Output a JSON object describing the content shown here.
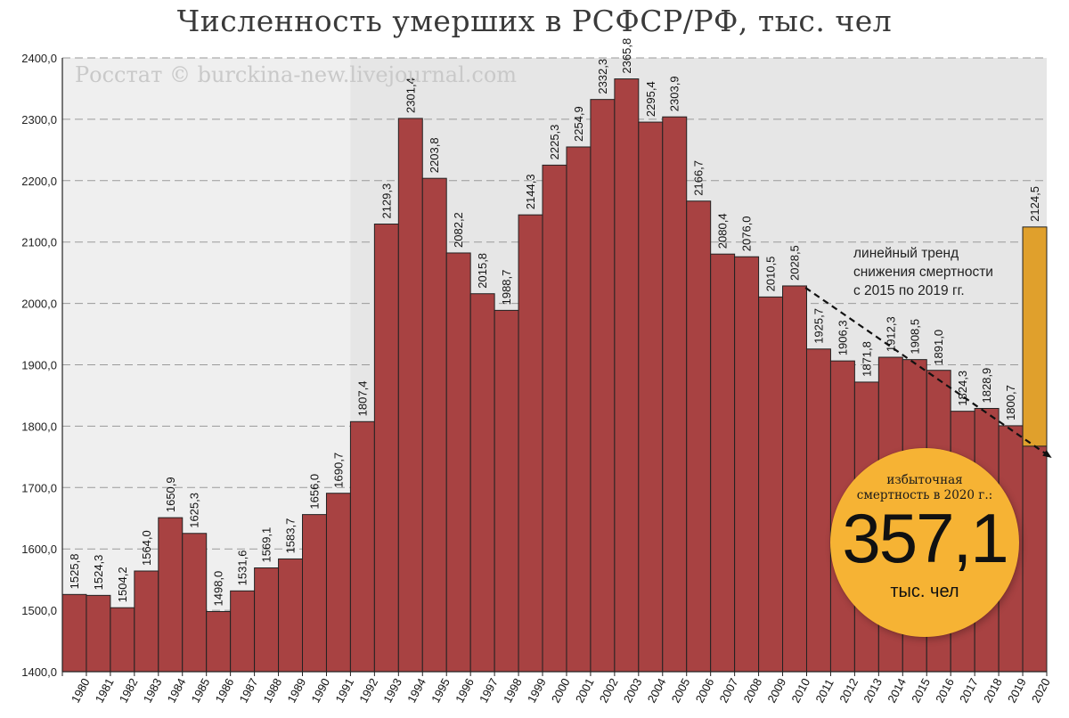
{
  "title": "Численность умерших в РСФСР/РФ, тыс. чел",
  "watermark": "Росстат © burckina-new.livejournal.com",
  "trend_note": [
    "линейный тренд",
    "снижения смертности",
    "с 2015 по 2019 гг."
  ],
  "badge": {
    "caption": [
      "избыточная",
      "смертность в 2020 г.:"
    ],
    "value": "357,1",
    "unit": "тыс. чел"
  },
  "colors": {
    "bar": "#a84242",
    "bar_highlight": "#e0a02c",
    "bar_stroke": "#222222",
    "badge": "#f6b334",
    "shade": "#e6e6e6"
  },
  "chart_data": {
    "type": "bar",
    "title": "Численность умерших в РСФСР/РФ, тыс. чел",
    "xlabel": "",
    "ylabel": "",
    "ylim": [
      1400,
      2400
    ],
    "yticks": [
      "1400,0",
      "1500,0",
      "1600,0",
      "1700,0",
      "1800,0",
      "1900,0",
      "2000,0",
      "2100,0",
      "2200,0",
      "2300,0",
      "2400,0"
    ],
    "grid": true,
    "shaded_from_category": "1992",
    "categories": [
      "1980",
      "1981",
      "1982",
      "1983",
      "1984",
      "1985",
      "1986",
      "1987",
      "1988",
      "1989",
      "1990",
      "1991",
      "1992",
      "1993",
      "1994",
      "1995",
      "1996",
      "1997",
      "1998",
      "1999",
      "2000",
      "2001",
      "2002",
      "2003",
      "2004",
      "2005",
      "2006",
      "2007",
      "2008",
      "2009",
      "2010",
      "2011",
      "2012",
      "2013",
      "2014",
      "2015",
      "2016",
      "2017",
      "2018",
      "2019",
      "2020"
    ],
    "values": [
      1525.8,
      1524.3,
      1504.2,
      1564.0,
      1650.9,
      1625.3,
      1498.0,
      1531.6,
      1569.1,
      1583.7,
      1656.0,
      1690.7,
      1807.4,
      2129.3,
      2301.4,
      2203.8,
      2082.2,
      2015.8,
      1988.7,
      2144.3,
      2225.3,
      2254.9,
      2332.3,
      2365.8,
      2295.4,
      2303.9,
      2166.7,
      2080.4,
      2076.0,
      2010.5,
      2028.5,
      1925.7,
      1906.3,
      1871.8,
      1912.3,
      1908.5,
      1891.0,
      1824.3,
      1828.9,
      1800.7,
      2124.5
    ],
    "labels": [
      "1525,8",
      "1524,3",
      "1504,2",
      "1564,0",
      "1650,9",
      "1625,3",
      "1498,0",
      "1531,6",
      "1569,1",
      "1583,7",
      "1656,0",
      "1690,7",
      "1807,4",
      "2129,3",
      "2301,4",
      "2203,8",
      "2082,2",
      "2015,8",
      "1988,7",
      "2144,3",
      "2225,3",
      "2254,9",
      "2332,3",
      "2365,8",
      "2295,4",
      "2303,9",
      "2166,7",
      "2080,4",
      "2076,0",
      "2010,5",
      "2028,5",
      "1925,7",
      "1906,3",
      "1871,8",
      "1912,3",
      "1908,5",
      "1891,0",
      "1824,3",
      "1828,9",
      "1800,7",
      "2124,5"
    ],
    "highlight_category": "2020",
    "trend_line": {
      "style": "dashed-arrow",
      "from": {
        "x": "2010",
        "y": 2028.5
      },
      "to": {
        "x": "2020",
        "y": 1750
      }
    },
    "trend_bar_2020": 1767.4
  }
}
